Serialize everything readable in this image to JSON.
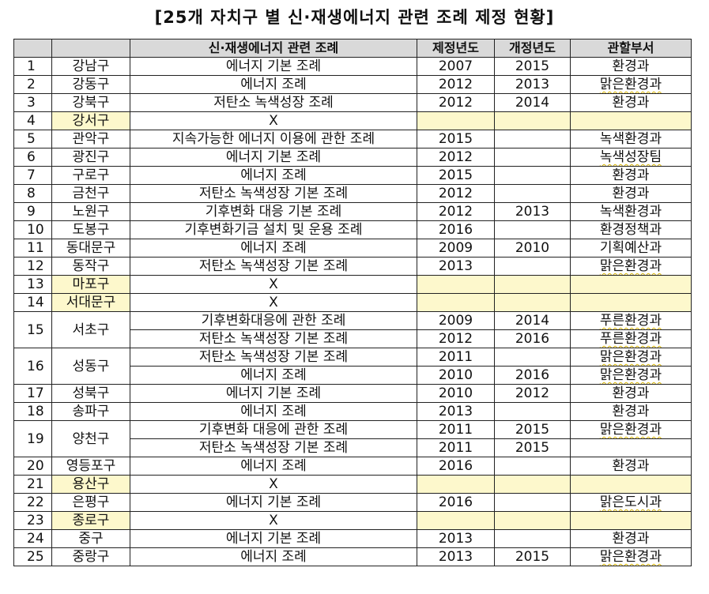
{
  "title": "[25개 자치구 별 신·재생에너지 관련 조례 제정 현황]",
  "headers": [
    "",
    "",
    "신·재생에너지 관련 조례",
    "제정년도",
    "개정년도",
    "관할부서"
  ],
  "rows": [
    {
      "no": "1",
      "district": "강남구",
      "ordinance": "에너지 기본 조례",
      "enacted": "2007",
      "revised": "2015",
      "dept": "환경과"
    },
    {
      "no": "2",
      "district": "강동구",
      "ordinance": "에너지 조례",
      "enacted": "2012",
      "revised": "2013",
      "dept": "맑은환경과"
    },
    {
      "no": "3",
      "district": "강북구",
      "ordinance": "저탄소 녹색성장 조례",
      "enacted": "2012",
      "revised": "2014",
      "dept": "환경과"
    },
    {
      "no": "4",
      "district": "강서구",
      "ordinance": "X",
      "enacted": "",
      "revised": "",
      "dept": "",
      "none": true
    },
    {
      "no": "5",
      "district": "관악구",
      "ordinance": "지속가능한 에너지 이용에 관한 조례",
      "enacted": "2015",
      "revised": "",
      "dept": "녹색환경과"
    },
    {
      "no": "6",
      "district": "광진구",
      "ordinance": "에너지 기본 조례",
      "enacted": "2012",
      "revised": "",
      "dept": "녹색성장팀"
    },
    {
      "no": "7",
      "district": "구로구",
      "ordinance": "에너지 조례",
      "enacted": "2015",
      "revised": "",
      "dept": "환경과"
    },
    {
      "no": "8",
      "district": "금천구",
      "ordinance": "저탄소 녹색성장 기본 조례",
      "enacted": "2012",
      "revised": "",
      "dept": "환경과"
    },
    {
      "no": "9",
      "district": "노원구",
      "ordinance": "기후변화 대응 기본 조례",
      "enacted": "2012",
      "revised": "2013",
      "dept": "녹색환경과"
    },
    {
      "no": "10",
      "district": "도봉구",
      "ordinance": "기후변화기금 설치 및 운용 조례",
      "enacted": "2016",
      "revised": "",
      "dept": "환경정책과"
    },
    {
      "no": "11",
      "district": "동대문구",
      "ordinance": "에너지 조례",
      "enacted": "2009",
      "revised": "2010",
      "dept": "기획예산과"
    },
    {
      "no": "12",
      "district": "동작구",
      "ordinance": "저탄소 녹색성장 기본 조례",
      "enacted": "2013",
      "revised": "",
      "dept": "맑은환경과"
    },
    {
      "no": "13",
      "district": "마포구",
      "ordinance": "X",
      "enacted": "",
      "revised": "",
      "dept": "",
      "none": true
    },
    {
      "no": "14",
      "district": "서대문구",
      "ordinance": "X",
      "enacted": "",
      "revised": "",
      "dept": "",
      "none": true
    },
    {
      "no": "15",
      "district": "서초구",
      "ordinance": "기후변화대응에 관한 조례",
      "enacted": "2009",
      "revised": "2014",
      "dept": "푸른환경과",
      "span": 2
    },
    {
      "ordinance": "저탄소 녹색성장 기본 조례",
      "enacted": "2012",
      "revised": "2016",
      "dept": "푸른환경과",
      "cont": true
    },
    {
      "no": "16",
      "district": "성동구",
      "ordinance": "저탄소 녹색성장 기본 조례",
      "enacted": "2011",
      "revised": "",
      "dept": "맑은환경과",
      "span": 2
    },
    {
      "ordinance": "에너지 조례",
      "enacted": "2010",
      "revised": "2016",
      "dept": "맑은환경과",
      "cont": true
    },
    {
      "no": "17",
      "district": "성북구",
      "ordinance": "에너지 기본 조례",
      "enacted": "2010",
      "revised": "2012",
      "dept": "환경과"
    },
    {
      "no": "18",
      "district": "송파구",
      "ordinance": "에너지 조례",
      "enacted": "2013",
      "revised": "",
      "dept": "환경과"
    },
    {
      "no": "19",
      "district": "양천구",
      "ordinance": "기후변화 대응에 관한 조례",
      "enacted": "2011",
      "revised": "2015",
      "dept": "맑은환경과",
      "span": 2
    },
    {
      "ordinance": "저탄소 녹색성장 기본 조례",
      "enacted": "2011",
      "revised": "2015",
      "dept": "",
      "cont": true
    },
    {
      "no": "20",
      "district": "영등포구",
      "ordinance": "에너지 조례",
      "enacted": "2016",
      "revised": "",
      "dept": "환경과"
    },
    {
      "no": "21",
      "district": "용산구",
      "ordinance": "X",
      "enacted": "",
      "revised": "",
      "dept": "",
      "none": true
    },
    {
      "no": "22",
      "district": "은평구",
      "ordinance": "에너지 기본 조례",
      "enacted": "2016",
      "revised": "",
      "dept": "맑은도시과"
    },
    {
      "no": "23",
      "district": "종로구",
      "ordinance": "X",
      "enacted": "",
      "revised": "",
      "dept": "",
      "none": true
    },
    {
      "no": "24",
      "district": "중구",
      "ordinance": "에너지 기본 조례",
      "enacted": "2013",
      "revised": "",
      "dept": "환경과"
    },
    {
      "no": "25",
      "district": "중랑구",
      "ordinance": "에너지 조례",
      "enacted": "2013",
      "revised": "2015",
      "dept": "맑은환경과"
    }
  ]
}
